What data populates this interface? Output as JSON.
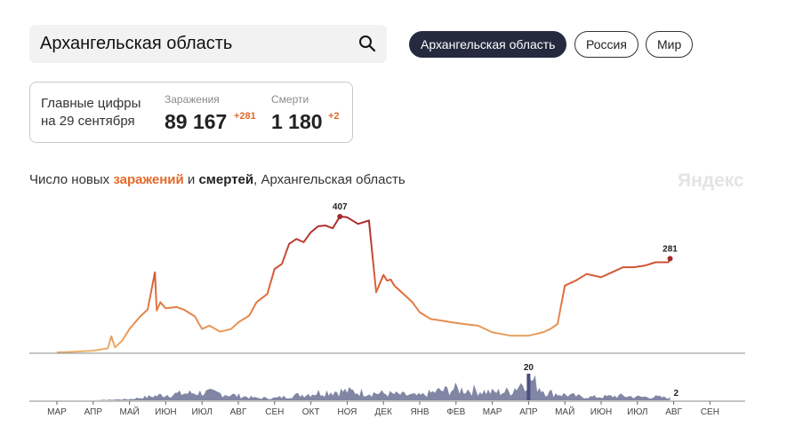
{
  "search": {
    "value": "Архангельская область"
  },
  "regions": [
    {
      "label": "Архангельская область",
      "active": true
    },
    {
      "label": "Россия",
      "active": false
    },
    {
      "label": "Мир",
      "active": false
    }
  ],
  "stats": {
    "caption_line1": "Главные цифры",
    "caption_line2": "на 29 сентября",
    "infections_label": "Заражения",
    "infections_value": "89 167",
    "infections_delta": "+281",
    "deaths_label": "Смерти",
    "deaths_value": "1 180",
    "deaths_delta": "+2"
  },
  "chart_title": {
    "prefix": "Число новых ",
    "infections_word": "заражений",
    "middle": " и ",
    "deaths_word": "смертей",
    "suffix": ", Архангельская область"
  },
  "watermark": "Яндекс",
  "colors": {
    "accent": "#e36a2a",
    "dark": "#262a3e",
    "deaths_fill": "#6b7194"
  },
  "chart_data": [
    {
      "type": "line",
      "series": [
        {
          "name": "заражений",
          "note": "daily new infections, x = month index from start of March 2020"
        }
      ],
      "x": [
        0,
        0.5,
        1,
        1.4,
        1.5,
        1.6,
        1.8,
        2,
        2.3,
        2.5,
        2.7,
        2.75,
        2.85,
        3,
        3.3,
        3.5,
        3.8,
        4,
        4.2,
        4.5,
        4.8,
        5,
        5.3,
        5.5,
        5.8,
        6,
        6.2,
        6.4,
        6.6,
        6.8,
        7,
        7.2,
        7.4,
        7.6,
        7.8,
        8,
        8.3,
        8.6,
        8.8,
        9,
        9.1,
        9.2,
        9.3,
        9.5,
        9.8,
        10,
        10.3,
        10.6,
        10.9,
        11.2,
        11.6,
        12,
        12.5,
        13,
        13.4,
        13.6,
        13.8,
        14,
        14.3,
        14.6,
        15,
        15.3,
        15.6,
        15.9,
        16.2,
        16.5,
        16.85,
        16.9
      ],
      "values": [
        0,
        2,
        5,
        12,
        48,
        15,
        35,
        70,
        108,
        128,
        240,
        125,
        150,
        132,
        136,
        128,
        108,
        70,
        80,
        62,
        70,
        90,
        110,
        150,
        175,
        250,
        265,
        325,
        340,
        330,
        360,
        378,
        380,
        372,
        407,
        405,
        385,
        395,
        180,
        232,
        215,
        218,
        200,
        180,
        150,
        120,
        100,
        95,
        90,
        85,
        80,
        60,
        50,
        50,
        60,
        70,
        85,
        200,
        215,
        235,
        225,
        240,
        255,
        255,
        260,
        270,
        270,
        281
      ],
      "peaks": [
        {
          "label": "407",
          "x": 7.8,
          "y": 407
        },
        {
          "label": "281",
          "x": 16.9,
          "y": 281
        }
      ],
      "categories": [
        "МАР",
        "АПР",
        "МАЙ",
        "ИЮН",
        "ИЮЛ",
        "АВГ",
        "СЕН",
        "ОКТ",
        "НОЯ",
        "ДЕК",
        "ЯНВ",
        "ФЕВ",
        "МАР",
        "АПР",
        "МАЙ",
        "ИЮН",
        "ИЮЛ",
        "АВГ",
        "СЕН"
      ],
      "ylim": [
        0,
        430
      ]
    },
    {
      "type": "area",
      "series": [
        {
          "name": "смертей",
          "note": "daily deaths"
        }
      ],
      "x": [
        0,
        1,
        2,
        2.5,
        3,
        3.5,
        4,
        4.5,
        5,
        5.5,
        6,
        6.5,
        7,
        7.5,
        8,
        8.5,
        9,
        9.5,
        10,
        10.5,
        11,
        11.5,
        12,
        12.5,
        13,
        13.5,
        14,
        14.5,
        15,
        15.5,
        16,
        16.5,
        16.9
      ],
      "values": [
        0,
        0,
        1,
        3,
        5,
        6,
        7,
        6,
        4,
        2,
        2,
        4,
        6,
        8,
        8,
        7,
        6,
        5,
        4,
        8,
        10,
        9,
        7,
        8,
        20,
        7,
        5,
        3,
        3,
        4,
        3,
        3,
        2
      ],
      "peaks": [
        {
          "label": "20",
          "x": 13,
          "y": 20
        },
        {
          "label": "2",
          "x": 16.9,
          "y": 2
        }
      ],
      "ylim": [
        0,
        21
      ]
    }
  ]
}
